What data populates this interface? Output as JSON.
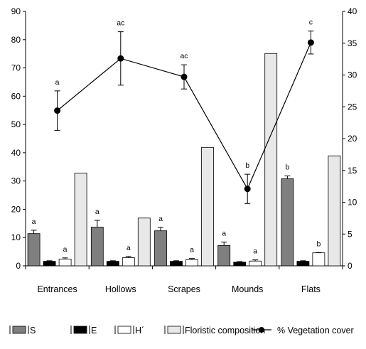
{
  "chart_data": {
    "type": "bar",
    "title": "",
    "xlabel": "",
    "ylabel_left": "",
    "ylabel_right": "",
    "categories": [
      "Entrances",
      "Hollows",
      "Scrapes",
      "Mounds",
      "Flats"
    ],
    "ylim_left": [
      0,
      90
    ],
    "yticks_left": [
      "0",
      "10",
      "20",
      "30",
      "40",
      "50",
      "60",
      "70",
      "80",
      "90"
    ],
    "ylim_right": [
      0,
      40
    ],
    "yticks_right": [
      "0",
      "5",
      "10",
      "15",
      "20",
      "25",
      "30",
      "35",
      "40"
    ],
    "grid": false,
    "legend_position": "bottom",
    "series": [
      {
        "name": "S",
        "type": "bar",
        "axis": "left",
        "color": "#7f7f7f",
        "values": [
          11.4,
          13.7,
          12.4,
          7.2,
          30.8
        ],
        "errors": [
          1.2,
          2.4,
          1.2,
          1.2,
          1.0
        ],
        "labels": [
          "a",
          "a",
          "a",
          "a",
          "b"
        ]
      },
      {
        "name": "E",
        "type": "bar",
        "axis": "left",
        "color": "#000000",
        "values": [
          1.6,
          1.6,
          1.6,
          1.3,
          1.6
        ],
        "errors": [
          0.2,
          0.2,
          0.2,
          0.2,
          0.2
        ],
        "labels": [
          "",
          "",
          "",
          "",
          ""
        ]
      },
      {
        "name": "H´",
        "type": "bar",
        "axis": "left",
        "color": "#ffffff",
        "values": [
          2.4,
          2.9,
          2.2,
          1.7,
          4.6
        ],
        "errors": [
          0.4,
          0.4,
          0.4,
          0.4,
          0.1
        ],
        "labels": [
          "a",
          "a",
          "a",
          "a",
          "b"
        ]
      },
      {
        "name": "Floristic composition",
        "type": "bar",
        "axis": "left",
        "color": "#e8e8e8",
        "values": [
          32.8,
          16.9,
          41.9,
          75.1,
          38.9
        ],
        "errors": [
          0,
          0,
          0,
          0,
          0
        ],
        "labels": [
          "",
          "",
          "",
          "",
          ""
        ]
      },
      {
        "name": "% Vegetation cover",
        "type": "line",
        "axis": "right",
        "color": "#000000",
        "values": [
          24.4,
          32.6,
          29.7,
          12.1,
          35.1
        ],
        "errors": [
          3.1,
          4.2,
          1.9,
          2.3,
          1.8
        ],
        "labels": [
          "a",
          "ac",
          "ac",
          "b",
          "c"
        ]
      }
    ]
  }
}
